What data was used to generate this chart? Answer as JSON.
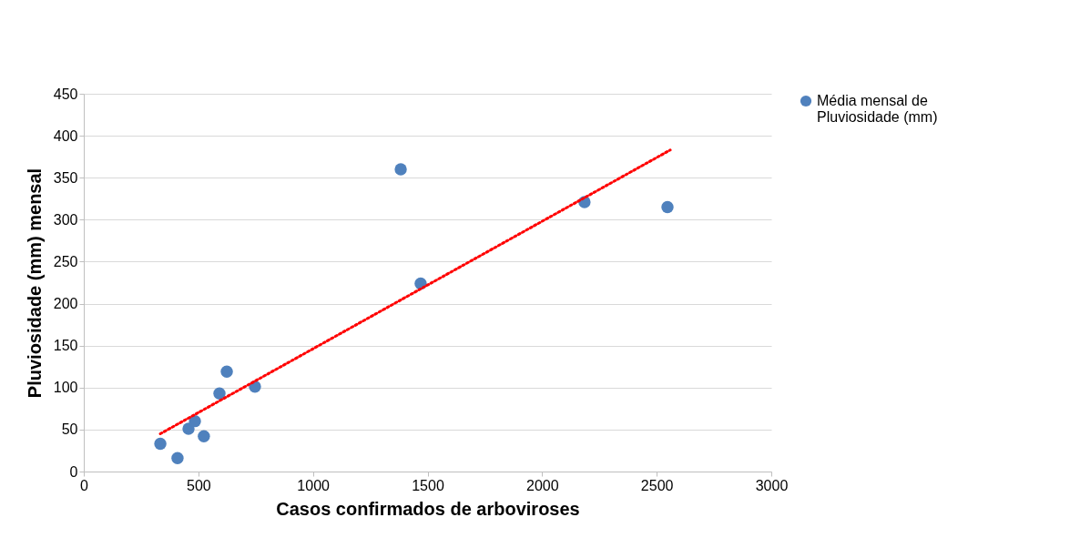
{
  "chart_data": {
    "type": "scatter",
    "xlabel": "Casos confirmados de arboviroses",
    "ylabel": "Pluviosidade (mm) mensal",
    "xlim": [
      0,
      3000
    ],
    "xticks": [
      0,
      500,
      1000,
      1500,
      2000,
      2500,
      3000
    ],
    "ylim": [
      0,
      450
    ],
    "yticks": [
      0,
      50,
      100,
      150,
      200,
      250,
      300,
      350,
      400,
      450
    ],
    "grid": "y",
    "legend": "right",
    "marker": "circle",
    "series": [
      {
        "name": "Média mensal de Pluviosidade (mm)",
        "color": "#4f81bd",
        "x": [
          334,
          409,
          457,
          485,
          524,
          592,
          624,
          747,
          1383,
          1470,
          2185,
          2547
        ],
        "values": [
          33,
          16,
          51,
          60,
          42,
          93,
          119,
          101,
          360,
          224,
          321,
          315
        ]
      },
      {
        "type": "line",
        "color": "#ff0000",
        "line_style": "dotted",
        "marker": "none",
        "x": [
          334,
          2559
        ],
        "values": [
          45,
          383
        ]
      }
    ]
  }
}
